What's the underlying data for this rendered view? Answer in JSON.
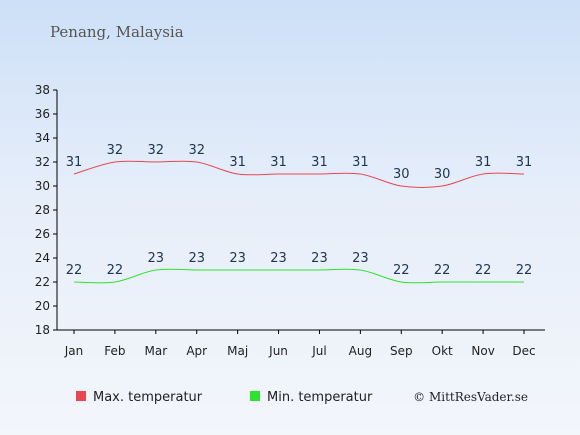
{
  "chart_data": {
    "type": "line",
    "title": "Penang, Malaysia",
    "categories": [
      "Jan",
      "Feb",
      "Mar",
      "Apr",
      "Maj",
      "Jun",
      "Jul",
      "Aug",
      "Sep",
      "Okt",
      "Nov",
      "Dec"
    ],
    "series": [
      {
        "name": "Max. temperatur",
        "color": "#e8474f",
        "values": [
          31,
          32,
          32,
          32,
          31,
          31,
          31,
          31,
          30,
          30,
          31,
          31
        ]
      },
      {
        "name": "Min. temperatur",
        "color": "#2fe22f",
        "values": [
          22,
          22,
          23,
          23,
          23,
          23,
          23,
          23,
          22,
          22,
          22,
          22
        ]
      }
    ],
    "ylim": [
      18,
      38
    ],
    "yticks": [
      18,
      20,
      22,
      24,
      26,
      28,
      30,
      32,
      34,
      36,
      38
    ],
    "xlabel": "",
    "ylabel": "",
    "grid": false,
    "legend": "bottom-left"
  },
  "credit": "© MittResVader.se"
}
